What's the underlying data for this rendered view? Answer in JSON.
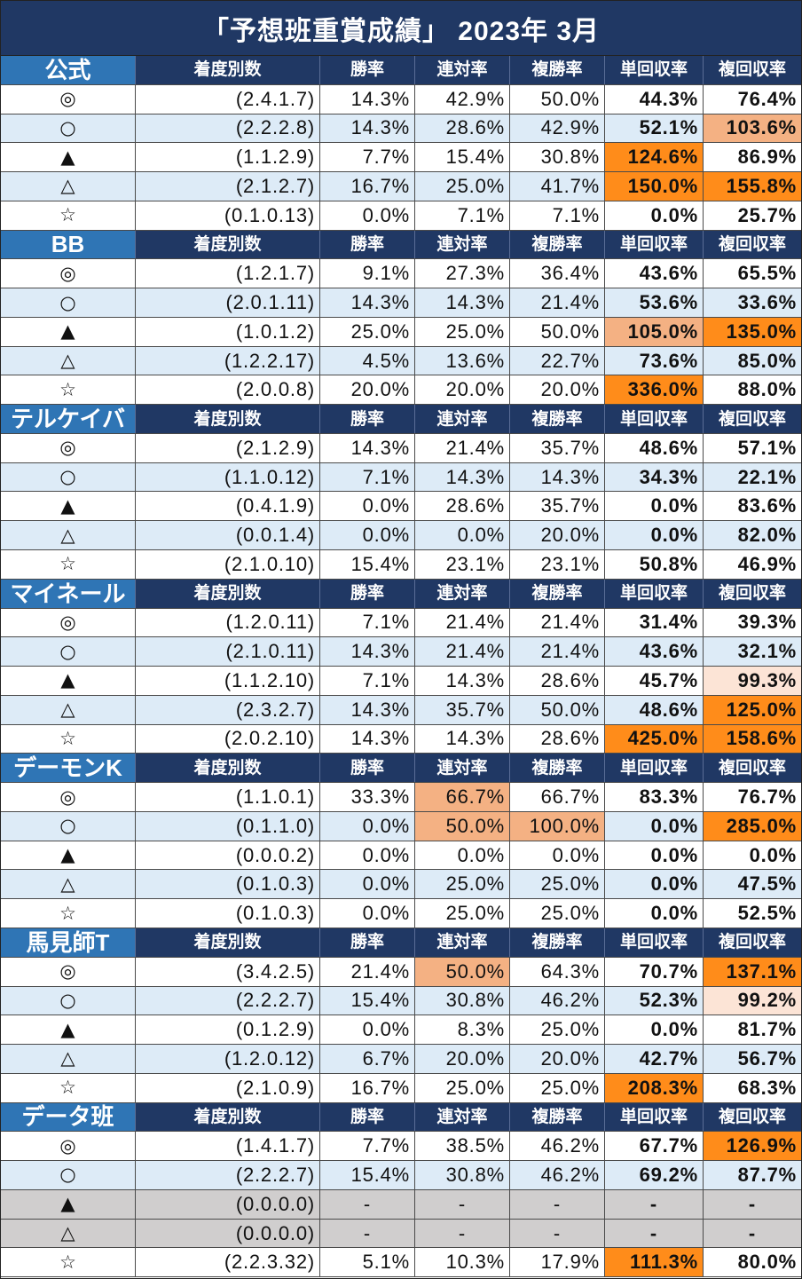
{
  "chart_data": {
    "type": "table",
    "title": "「予想班重賞成績」 2023年 3月",
    "columns": [
      "着度別数",
      "勝率",
      "連対率",
      "複勝率",
      "単回収率",
      "複回収率"
    ],
    "groups": [
      {
        "name": "公式",
        "rows": [
          {
            "mark": "◎",
            "values": [
              "(2.4.1.7)",
              "14.3%",
              "42.9%",
              "50.0%",
              "44.3%",
              "76.4%"
            ]
          },
          {
            "mark": "○",
            "values": [
              "(2.2.2.8)",
              "14.3%",
              "28.6%",
              "42.9%",
              "52.1%",
              "103.6%"
            ],
            "highlight": {
              "複回収率": "#F4B183"
            }
          },
          {
            "mark": "▲",
            "values": [
              "(1.1.2.9)",
              "7.7%",
              "15.4%",
              "30.8%",
              "124.6%",
              "86.9%"
            ],
            "highlight": {
              "単回収率": "#FF8C1A"
            }
          },
          {
            "mark": "△",
            "values": [
              "(2.1.2.7)",
              "16.7%",
              "25.0%",
              "41.7%",
              "150.0%",
              "155.8%"
            ],
            "highlight": {
              "単回収率": "#FF8C1A",
              "複回収率": "#FF8C1A"
            }
          },
          {
            "mark": "☆",
            "values": [
              "(0.1.0.13)",
              "0.0%",
              "7.1%",
              "7.1%",
              "0.0%",
              "25.7%"
            ]
          }
        ]
      },
      {
        "name": "BB",
        "rows": [
          {
            "mark": "◎",
            "values": [
              "(1.2.1.7)",
              "9.1%",
              "27.3%",
              "36.4%",
              "43.6%",
              "65.5%"
            ]
          },
          {
            "mark": "○",
            "values": [
              "(2.0.1.11)",
              "14.3%",
              "14.3%",
              "21.4%",
              "53.6%",
              "33.6%"
            ]
          },
          {
            "mark": "▲",
            "values": [
              "(1.0.1.2)",
              "25.0%",
              "25.0%",
              "50.0%",
              "105.0%",
              "135.0%"
            ],
            "highlight": {
              "単回収率": "#F4B183",
              "複回収率": "#FF8C1A"
            }
          },
          {
            "mark": "△",
            "values": [
              "(1.2.2.17)",
              "4.5%",
              "13.6%",
              "22.7%",
              "73.6%",
              "85.0%"
            ]
          },
          {
            "mark": "☆",
            "values": [
              "(2.0.0.8)",
              "20.0%",
              "20.0%",
              "20.0%",
              "336.0%",
              "88.0%"
            ],
            "highlight": {
              "単回収率": "#FF8C1A"
            }
          }
        ]
      },
      {
        "name": "テルケイバ",
        "rows": [
          {
            "mark": "◎",
            "values": [
              "(2.1.2.9)",
              "14.3%",
              "21.4%",
              "35.7%",
              "48.6%",
              "57.1%"
            ]
          },
          {
            "mark": "○",
            "values": [
              "(1.1.0.12)",
              "7.1%",
              "14.3%",
              "14.3%",
              "34.3%",
              "22.1%"
            ]
          },
          {
            "mark": "▲",
            "values": [
              "(0.4.1.9)",
              "0.0%",
              "28.6%",
              "35.7%",
              "0.0%",
              "83.6%"
            ]
          },
          {
            "mark": "△",
            "values": [
              "(0.0.1.4)",
              "0.0%",
              "0.0%",
              "20.0%",
              "0.0%",
              "82.0%"
            ]
          },
          {
            "mark": "☆",
            "values": [
              "(2.1.0.10)",
              "15.4%",
              "23.1%",
              "23.1%",
              "50.8%",
              "46.9%"
            ]
          }
        ]
      },
      {
        "name": "マイネール",
        "rows": [
          {
            "mark": "◎",
            "values": [
              "(1.2.0.11)",
              "7.1%",
              "21.4%",
              "21.4%",
              "31.4%",
              "39.3%"
            ]
          },
          {
            "mark": "○",
            "values": [
              "(2.1.0.11)",
              "14.3%",
              "21.4%",
              "21.4%",
              "43.6%",
              "32.1%"
            ]
          },
          {
            "mark": "▲",
            "values": [
              "(1.1.2.10)",
              "7.1%",
              "14.3%",
              "28.6%",
              "45.7%",
              "99.3%"
            ],
            "highlight": {
              "複回収率": "#FCE4D6"
            }
          },
          {
            "mark": "△",
            "values": [
              "(2.3.2.7)",
              "14.3%",
              "35.7%",
              "50.0%",
              "48.6%",
              "125.0%"
            ],
            "highlight": {
              "複回収率": "#FF8C1A"
            }
          },
          {
            "mark": "☆",
            "values": [
              "(2.0.2.10)",
              "14.3%",
              "14.3%",
              "28.6%",
              "425.0%",
              "158.6%"
            ],
            "highlight": {
              "単回収率": "#FF8C1A",
              "複回収率": "#FF8C1A"
            }
          }
        ]
      },
      {
        "name": "デーモンK",
        "rows": [
          {
            "mark": "◎",
            "values": [
              "(1.1.0.1)",
              "33.3%",
              "66.7%",
              "66.7%",
              "83.3%",
              "76.7%"
            ],
            "highlight": {
              "連対率": "#F4B183"
            }
          },
          {
            "mark": "○",
            "values": [
              "(0.1.1.0)",
              "0.0%",
              "50.0%",
              "100.0%",
              "0.0%",
              "285.0%"
            ],
            "highlight": {
              "連対率": "#F4B183",
              "複勝率": "#F4B183",
              "複回収率": "#FF8C1A"
            }
          },
          {
            "mark": "▲",
            "values": [
              "(0.0.0.2)",
              "0.0%",
              "0.0%",
              "0.0%",
              "0.0%",
              "0.0%"
            ]
          },
          {
            "mark": "△",
            "values": [
              "(0.1.0.3)",
              "0.0%",
              "25.0%",
              "25.0%",
              "0.0%",
              "47.5%"
            ]
          },
          {
            "mark": "☆",
            "values": [
              "(0.1.0.3)",
              "0.0%",
              "25.0%",
              "25.0%",
              "0.0%",
              "52.5%"
            ]
          }
        ]
      },
      {
        "name": "馬見師T",
        "rows": [
          {
            "mark": "◎",
            "values": [
              "(3.4.2.5)",
              "21.4%",
              "50.0%",
              "64.3%",
              "70.7%",
              "137.1%"
            ],
            "highlight": {
              "連対率": "#F4B183",
              "複回収率": "#FF8C1A"
            }
          },
          {
            "mark": "○",
            "values": [
              "(2.2.2.7)",
              "15.4%",
              "30.8%",
              "46.2%",
              "52.3%",
              "99.2%"
            ],
            "highlight": {
              "複回収率": "#FCE4D6"
            }
          },
          {
            "mark": "▲",
            "values": [
              "(0.1.2.9)",
              "0.0%",
              "8.3%",
              "25.0%",
              "0.0%",
              "81.7%"
            ]
          },
          {
            "mark": "△",
            "values": [
              "(1.2.0.12)",
              "6.7%",
              "20.0%",
              "20.0%",
              "42.7%",
              "56.7%"
            ]
          },
          {
            "mark": "☆",
            "values": [
              "(2.1.0.9)",
              "16.7%",
              "25.0%",
              "25.0%",
              "208.3%",
              "68.3%"
            ],
            "highlight": {
              "単回収率": "#FF8C1A"
            }
          }
        ]
      },
      {
        "name": "データ班",
        "rows": [
          {
            "mark": "◎",
            "values": [
              "(1.4.1.7)",
              "7.7%",
              "38.5%",
              "46.2%",
              "67.7%",
              "126.9%"
            ],
            "highlight": {
              "複回収率": "#FF8C1A"
            }
          },
          {
            "mark": "○",
            "values": [
              "(2.2.2.7)",
              "15.4%",
              "30.8%",
              "46.2%",
              "69.2%",
              "87.7%"
            ]
          },
          {
            "mark": "▲",
            "values": [
              "(0.0.0.0)",
              "-",
              "-",
              "-",
              "-",
              "-"
            ],
            "row_fill": "#D0CECE"
          },
          {
            "mark": "△",
            "values": [
              "(0.0.0.0)",
              "-",
              "-",
              "-",
              "-",
              "-"
            ],
            "row_fill": "#D0CECE"
          },
          {
            "mark": "☆",
            "values": [
              "(2.2.3.32)",
              "5.1%",
              "10.3%",
              "17.9%",
              "111.3%",
              "80.0%"
            ],
            "highlight": {
              "単回収率": "#FF8C1A"
            }
          }
        ]
      }
    ]
  }
}
